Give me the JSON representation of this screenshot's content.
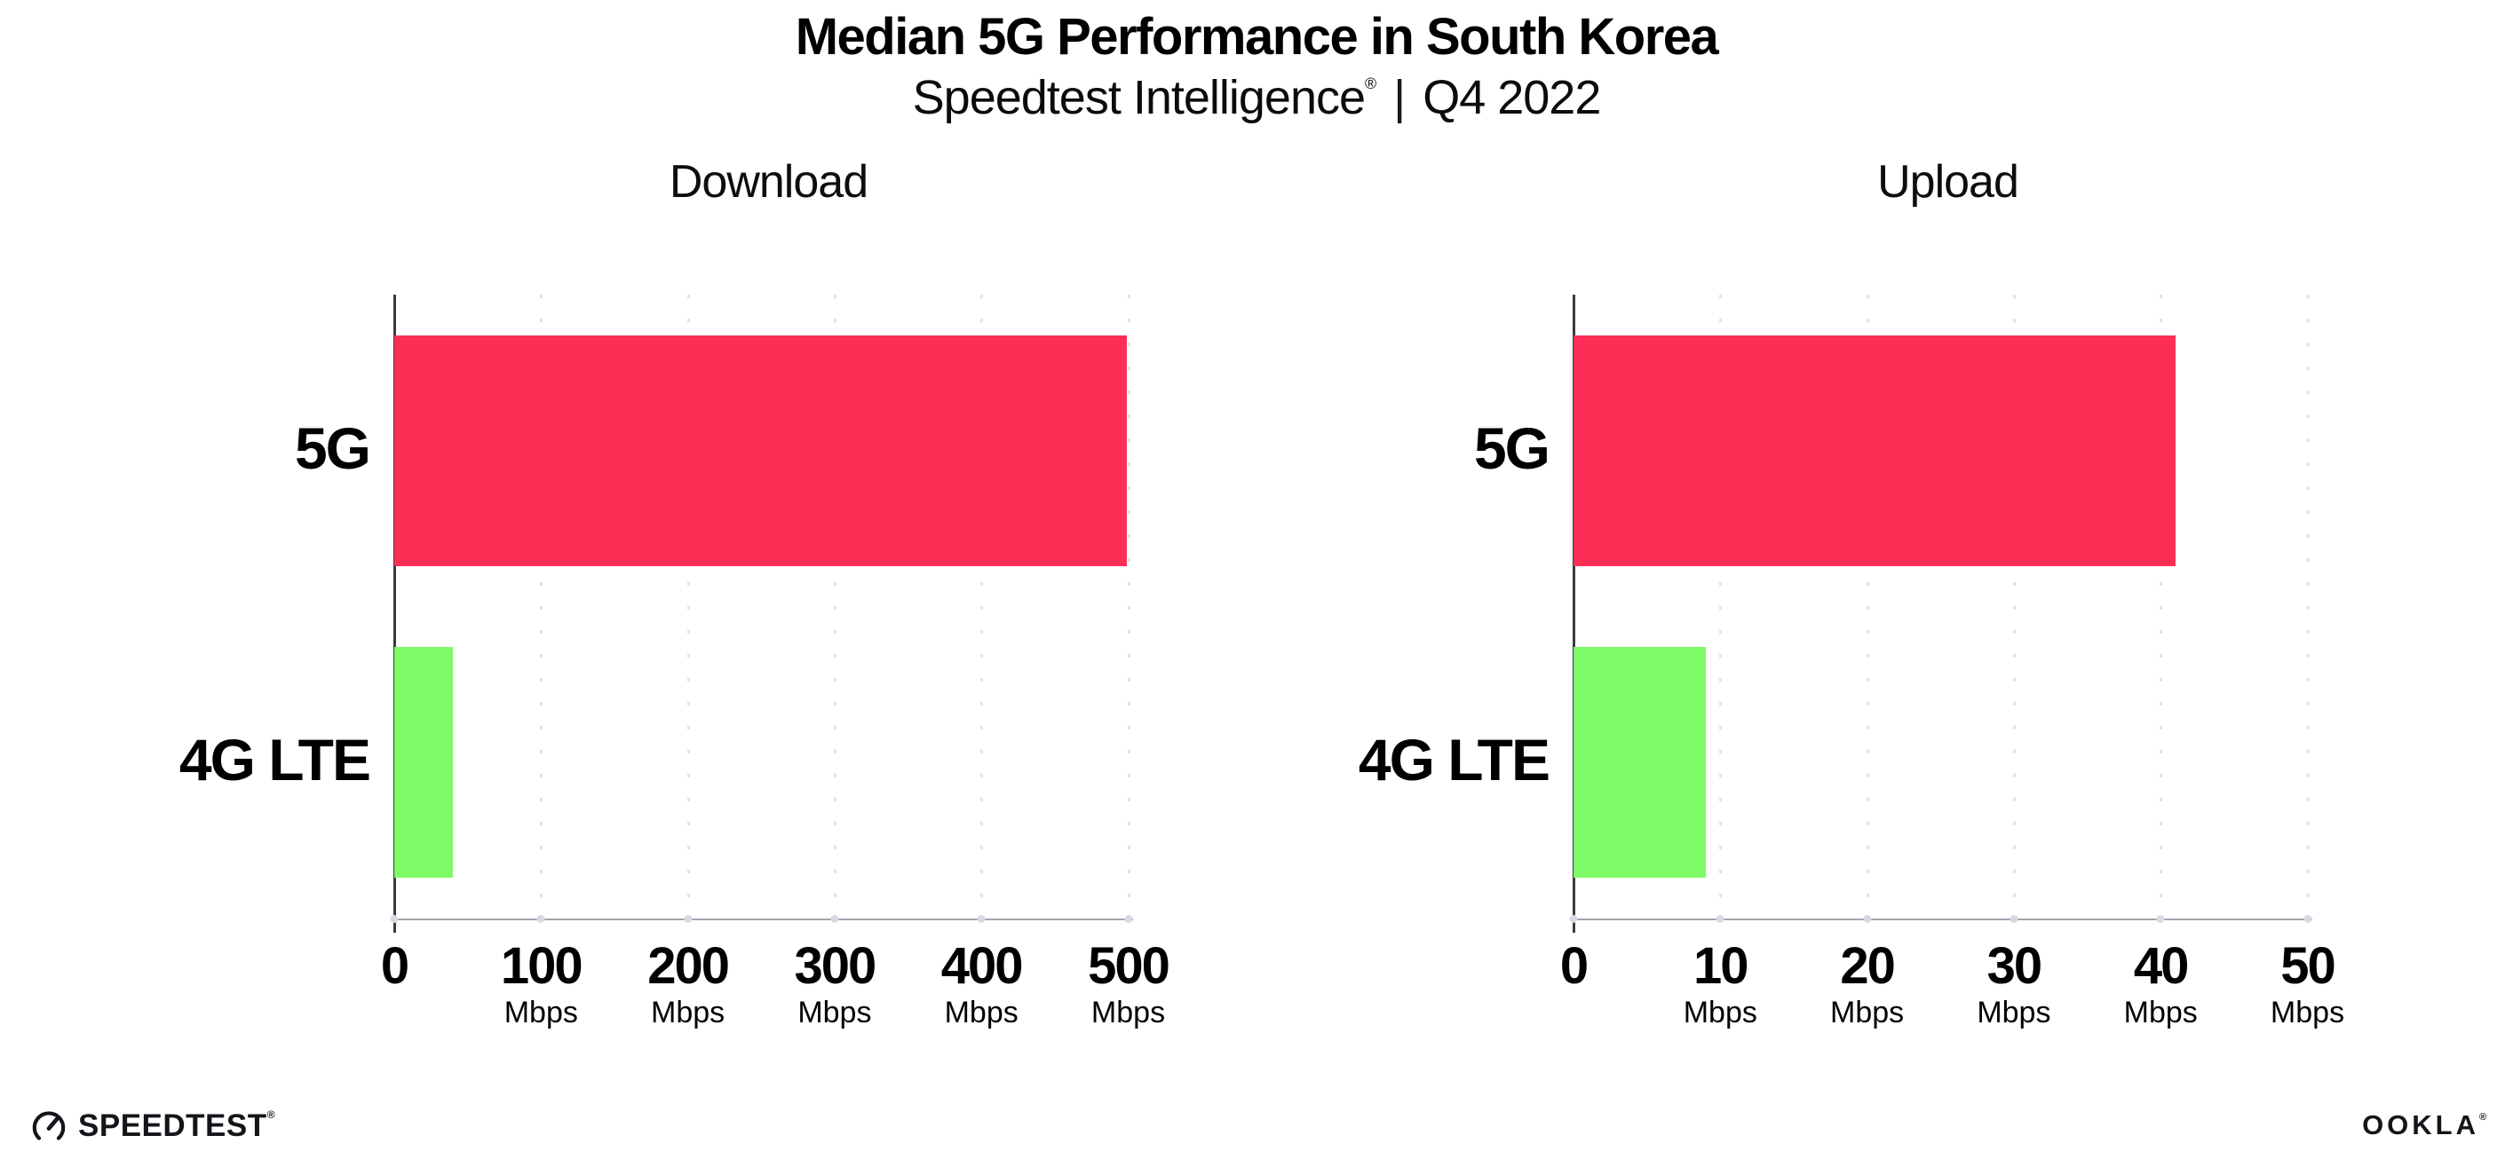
{
  "header": {
    "title": "Median 5G Performance in South Korea",
    "subtitle_brand": "Speedtest Intelligence",
    "subtitle_reg": "®",
    "subtitle_sep": "|",
    "subtitle_period": "Q4 2022"
  },
  "chart_data": [
    {
      "type": "bar",
      "orientation": "horizontal",
      "title": "Download",
      "categories": [
        "5G",
        "4G LTE"
      ],
      "values": [
        499,
        40
      ],
      "unit": "Mbps",
      "xlabel": "",
      "ylabel": "",
      "xlim": [
        0,
        500
      ],
      "xticks": [
        0,
        100,
        200,
        300,
        400,
        500
      ],
      "bar_colors": [
        "#fd2e55",
        "#7dfa66"
      ],
      "grid": "dotted-vertical",
      "legend": "none"
    },
    {
      "type": "bar",
      "orientation": "horizontal",
      "title": "Upload",
      "categories": [
        "5G",
        "4G LTE"
      ],
      "values": [
        41,
        9
      ],
      "unit": "Mbps",
      "xlabel": "",
      "ylabel": "",
      "xlim": [
        0,
        50
      ],
      "xticks": [
        0,
        10,
        20,
        30,
        40,
        50
      ],
      "bar_colors": [
        "#fd2e55",
        "#7dfa66"
      ],
      "grid": "dotted-vertical",
      "legend": "none"
    }
  ],
  "footer": {
    "speedtest_text": "SPEEDTEST",
    "speedtest_mark": "®",
    "ookla_text": "OOKLA",
    "ookla_mark": "®"
  },
  "colors": {
    "bar_5g": "#fd2e55",
    "bar_4g_lte": "#7dfa66",
    "gridline": "#e1e1ed",
    "baseline": "#a4a4ac",
    "y_axis": "#3a3a42",
    "text": "#000000",
    "background": "#ffffff"
  }
}
